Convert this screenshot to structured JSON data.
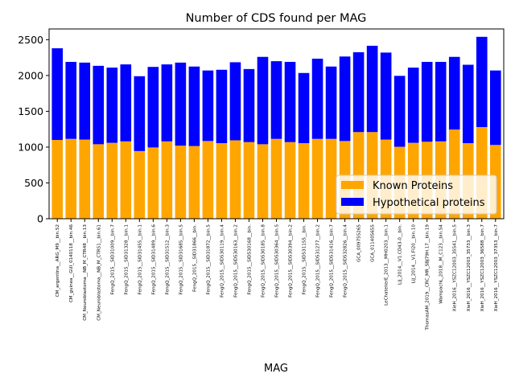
{
  "chart_data": {
    "type": "bar",
    "stacked": true,
    "title": "Number of CDS found per MAG",
    "xlabel": "MAG",
    "ylabel": "",
    "ylim": [
      0,
      2650
    ],
    "yticks": [
      0,
      500,
      1000,
      1500,
      2000,
      2500
    ],
    "grid": false,
    "legend_position": "lower-right",
    "categories": [
      "CM_argentina__ARG_M9__bin.52",
      "CM_guinea__GUI_0140118__bin.46",
      "CM_Neuroblastoma__NB_M_CTR48__bin.13",
      "CM_Neuroblastoma__NB_M_CTR51__bin.61",
      "FengQ_2015__SID31009__bin.7",
      "FengQ_2015__SID31328__bin.1",
      "FengQ_2015__SID31455__bin.1",
      "FengQ_2015__SID31489__bin.6",
      "FengQ_2015__SID31512__bin.3",
      "FengQ_2015__SID31685__bin.5",
      "FengQ_2015__SID31866__bin.",
      "FengQ_2015__SID31872__bin.5",
      "FengQ_2015__SID530119__bin.4",
      "FengQ_2015__SID530163__bin.2",
      "FengQ_2015__SID530168__bin.",
      "FengQ_2015__SID530185__bin.8",
      "FengQ_2015__SID530364__bin.5",
      "FengQ_2015__SID530394__bin.2",
      "FengQ_2015__SID531155__bin.",
      "FengQ_2015__SID531277__bin.2",
      "FengQ_2015__SID531416__bin.7",
      "FengQ_2015__SID532826__bin.4",
      "GCA_009755265",
      "GCA_011405655",
      "LeChatelierE_2013__MH0203__bin.1",
      "LiJ_2014__V1.CD43-0__bin.",
      "LiJ_2014__V1.FI20__bin.10",
      "ThomasAM_2019__CRC_MR_SBJ79H.17__bin.19",
      "WampachL_2018__M_C123__bin.54",
      "XieH_2016__YSZC12003_35541__bin.5",
      "XieH_2016__YSZC12003_35733__bin.3",
      "XieH_2016__YSZC12003_36588__bin.7",
      "XieH_2016__YSZC12003_37353__bin.7"
    ],
    "series": [
      {
        "name": "Known Proteins",
        "color": "#ffa500",
        "values": [
          1100,
          1115,
          1105,
          1040,
          1060,
          1080,
          945,
          995,
          1080,
          1020,
          1015,
          1085,
          1055,
          1095,
          1070,
          1040,
          1115,
          1070,
          1055,
          1115,
          1115,
          1085,
          1210,
          1210,
          1105,
          1005,
          1060,
          1075,
          1080,
          1245,
          1055,
          1280,
          1030
        ]
      },
      {
        "name": "Hypothetical proteins",
        "color": "#0000ff",
        "values": [
          1280,
          1075,
          1075,
          1095,
          1050,
          1075,
          1045,
          1125,
          1075,
          1160,
          1110,
          985,
          1025,
          1090,
          1020,
          1220,
          1085,
          1120,
          980,
          1120,
          1010,
          1180,
          1115,
          1205,
          1215,
          990,
          1050,
          1115,
          1110,
          1015,
          1095,
          1260,
          1040
        ]
      }
    ]
  }
}
